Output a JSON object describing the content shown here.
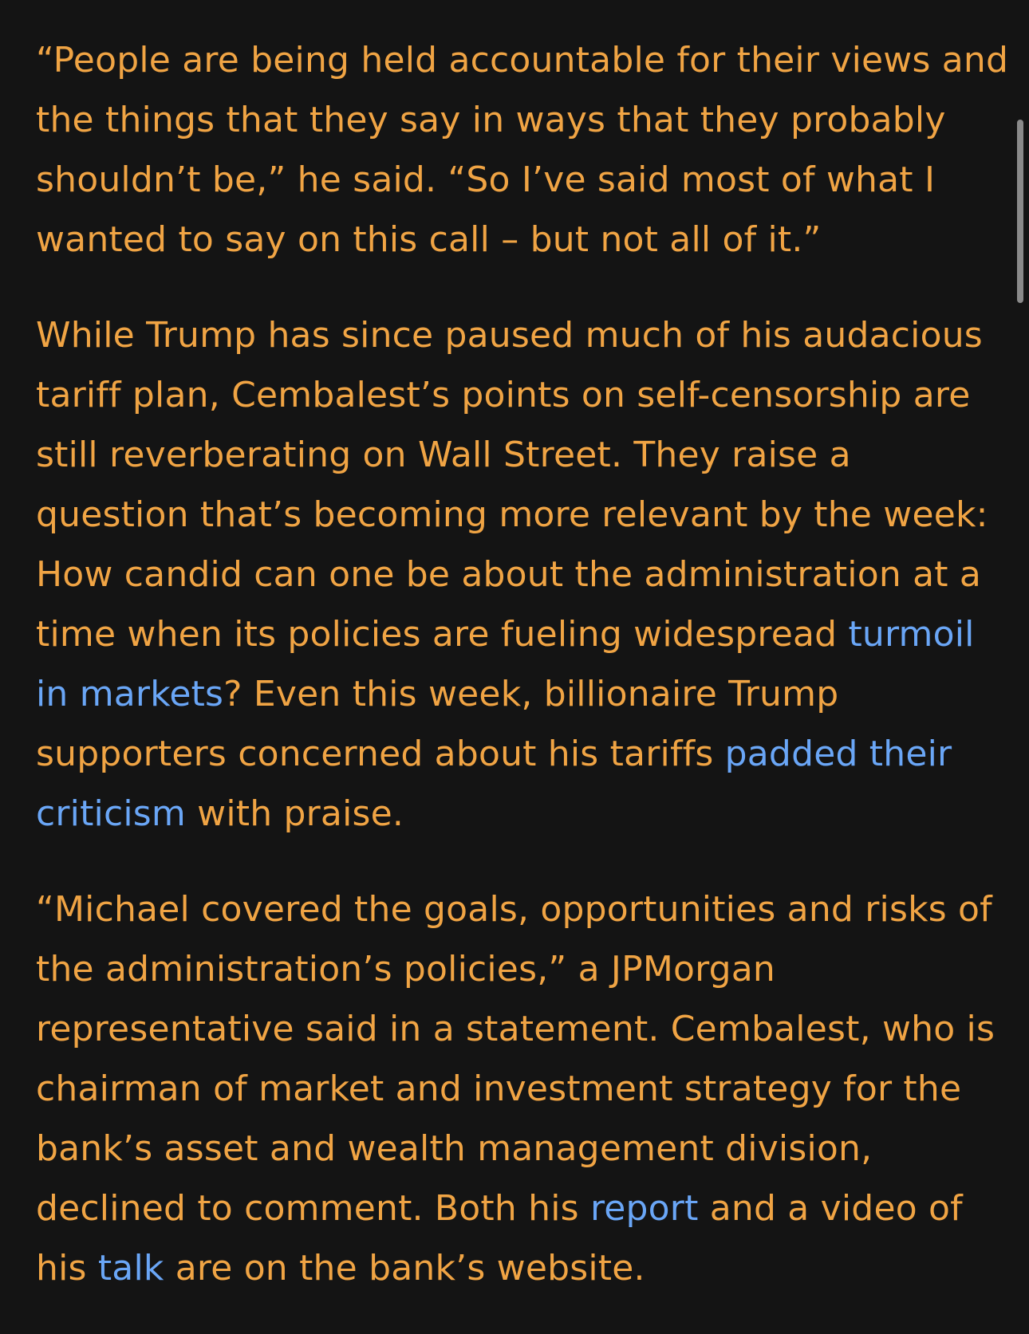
{
  "article": {
    "paragraphs": [
      {
        "lines": [
          [
            {
              "text": "“People are being held accountable for their views and"
            }
          ],
          [
            {
              "text": "the things that they say in ways that they probably"
            }
          ],
          [
            {
              "text": "shouldn’t be,” he said. “So I’ve said most of what I"
            }
          ],
          [
            {
              "text": "wanted to say on this call – but not all of it.”"
            }
          ]
        ]
      },
      {
        "lines": [
          [
            {
              "text": "While Trump has since paused much of his audacious"
            }
          ],
          [
            {
              "text": "tariff plan, Cembalest’s points on self-censorship are"
            }
          ],
          [
            {
              "text": "still reverberating on Wall Street. They raise a"
            }
          ],
          [
            {
              "text": "question that’s becoming more relevant by the week:"
            }
          ],
          [
            {
              "text": "How candid can one be about the administration at a"
            }
          ],
          [
            {
              "text": "time when its policies are fueling widespread "
            },
            {
              "text": "turmoil",
              "link": true
            }
          ],
          [
            {
              "text": "in markets",
              "link": true
            },
            {
              "text": "? Even this week, billionaire Trump"
            }
          ],
          [
            {
              "text": "supporters concerned about his tariffs "
            },
            {
              "text": "padded their",
              "link": true
            }
          ],
          [
            {
              "text": "criticism",
              "link": true
            },
            {
              "text": " with praise."
            }
          ]
        ]
      },
      {
        "lines": [
          [
            {
              "text": "“Michael covered the goals, opportunities and risks of"
            }
          ],
          [
            {
              "text": "the administration’s policies,” a JPMorgan"
            }
          ],
          [
            {
              "text": "representative said in a statement. Cembalest, who is"
            }
          ],
          [
            {
              "text": "chairman of market and investment strategy for the"
            }
          ],
          [
            {
              "text": "bank’s asset and wealth management division,"
            }
          ],
          [
            {
              "text": "declined to comment. Both his "
            },
            {
              "text": "report",
              "link": true
            },
            {
              "text": " and a video of"
            }
          ],
          [
            {
              "text": "his "
            },
            {
              "text": "talk",
              "link": true
            },
            {
              "text": " are on the bank’s website."
            }
          ]
        ]
      }
    ]
  },
  "colors": {
    "background": "#141414",
    "text": "#f0a444",
    "link": "#6aa6f6",
    "scrollbar": "#8a8a8a"
  }
}
